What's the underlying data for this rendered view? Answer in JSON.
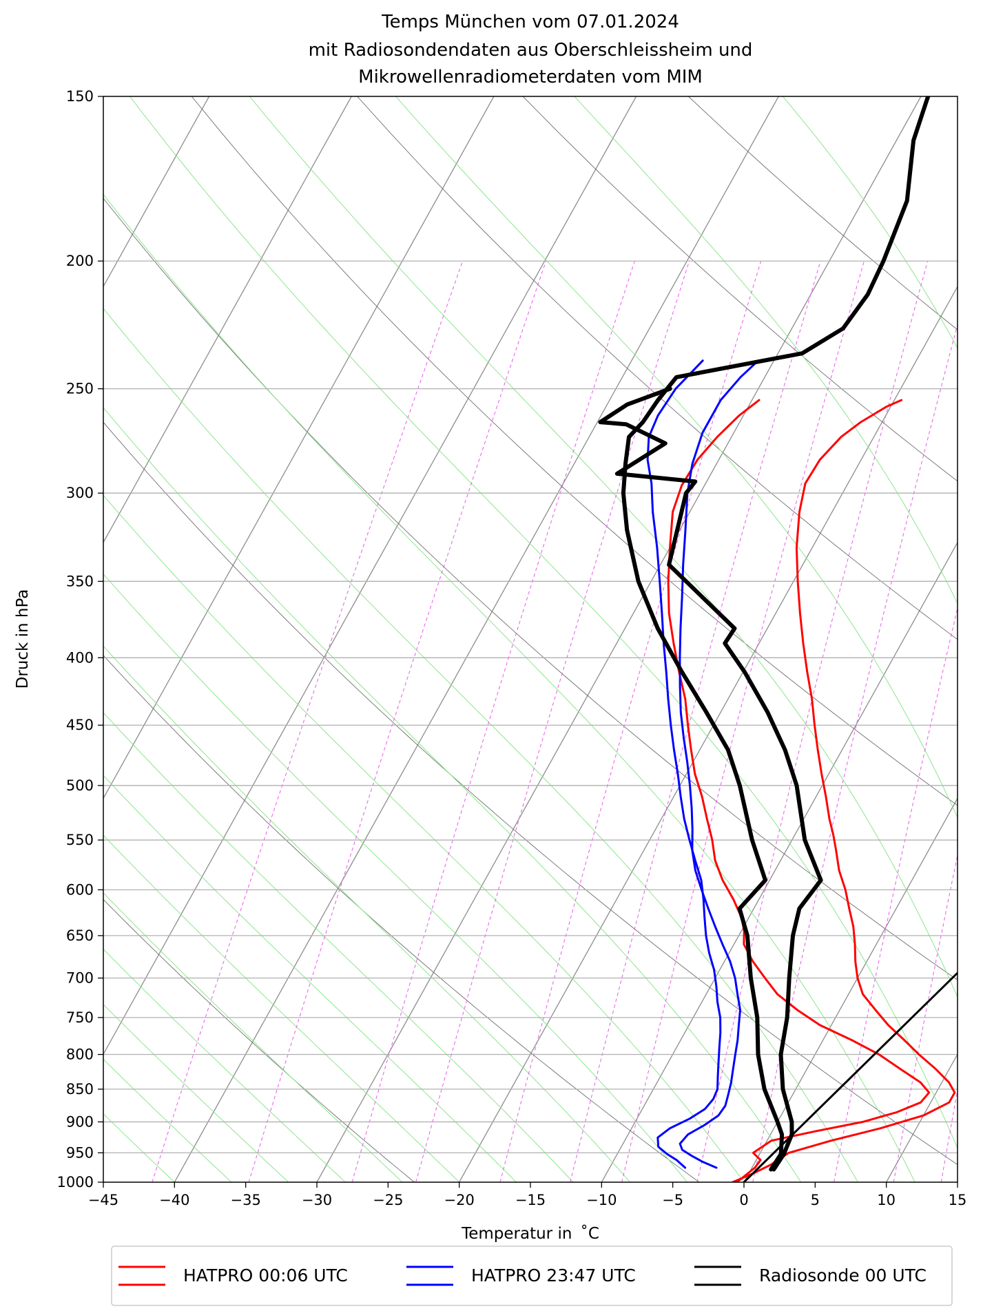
{
  "chart_data": {
    "type": "line",
    "title": [
      "Temps München vom 07.01.2024",
      "mit Radiosondendaten aus Oberschleissheim und",
      "Mikrowellenradiometerdaten vom MIM"
    ],
    "xlabel": "Temperatur in  ˚C",
    "ylabel": "Druck in hPa",
    "xlim": [
      -45,
      15
    ],
    "ylim": [
      1000,
      150
    ],
    "y_scale": "log",
    "skew_deg_per_decade": 51.5,
    "x_ticks": [
      "−45",
      "−40",
      "−35",
      "−30",
      "−25",
      "−20",
      "−15",
      "−10",
      "−5",
      "0",
      "5",
      "10",
      "15"
    ],
    "y_ticks": [
      "150",
      "200",
      "250",
      "300",
      "350",
      "400",
      "450",
      "500",
      "550",
      "600",
      "650",
      "700",
      "750",
      "800",
      "850",
      "900",
      "950",
      "1000"
    ],
    "grid": true,
    "legend_position": "bottom",
    "background_lines": {
      "skewed_isotherms": "gray",
      "dry_adiabats": "dimgray",
      "moist_adiabats": "lightgreen",
      "mixing_ratio_lines": "magenta dashed"
    },
    "series": [
      {
        "name": "HATPRO 00:06 UTC",
        "color": "#ff0000",
        "lines": [
          {
            "label": "temperature",
            "points": [
              [
                1000,
                -0.5
              ],
              [
                975,
                0.2
              ],
              [
                962,
                0.3
              ],
              [
                950,
                -0.5
              ],
              [
                930,
                0.3
              ],
              [
                915,
                3.0
              ],
              [
                900,
                6.0
              ],
              [
                885,
                8.0
              ],
              [
                870,
                9.3
              ],
              [
                855,
                9.5
              ],
              [
                840,
                8.5
              ],
              [
                820,
                6.5
              ],
              [
                800,
                4.5
              ],
              [
                780,
                2.0
              ],
              [
                760,
                -0.8
              ],
              [
                740,
                -3.0
              ],
              [
                720,
                -5.0
              ],
              [
                700,
                -6.5
              ],
              [
                680,
                -8.0
              ],
              [
                660,
                -9.3
              ],
              [
                645,
                -9.8
              ],
              [
                630,
                -10.5
              ],
              [
                610,
                -11.8
              ],
              [
                590,
                -13.3
              ],
              [
                570,
                -14.6
              ],
              [
                550,
                -15.6
              ],
              [
                530,
                -16.8
              ],
              [
                510,
                -18.0
              ],
              [
                490,
                -19.4
              ],
              [
                470,
                -20.6
              ],
              [
                450,
                -21.8
              ],
              [
                430,
                -23.0
              ],
              [
                410,
                -24.5
              ],
              [
                390,
                -26.0
              ],
              [
                370,
                -27.5
              ],
              [
                350,
                -28.8
              ],
              [
                330,
                -30.0
              ],
              [
                310,
                -31.2
              ],
              [
                296,
                -31.6
              ],
              [
                283,
                -31.5
              ],
              [
                272,
                -31.0
              ],
              [
                262,
                -30.3
              ],
              [
                255,
                -29.5
              ]
            ]
          },
          {
            "label": "dewpoint",
            "points": [
              [
                1000,
                -0.8
              ],
              [
                985,
                0.3
              ],
              [
                970,
                1.2
              ],
              [
                950,
                2.0
              ],
              [
                930,
                4.5
              ],
              [
                910,
                7.5
              ],
              [
                890,
                10.0
              ],
              [
                870,
                11.3
              ],
              [
                855,
                11.3
              ],
              [
                840,
                10.5
              ],
              [
                820,
                9.0
              ],
              [
                800,
                7.3
              ],
              [
                780,
                5.7
              ],
              [
                760,
                4.0
              ],
              [
                740,
                2.5
              ],
              [
                720,
                1.0
              ],
              [
                700,
                0.0
              ],
              [
                680,
                -0.8
              ],
              [
                660,
                -1.5
              ],
              [
                640,
                -2.3
              ],
              [
                620,
                -3.3
              ],
              [
                600,
                -4.3
              ],
              [
                580,
                -5.5
              ],
              [
                560,
                -6.5
              ],
              [
                545,
                -7.3
              ],
              [
                530,
                -8.2
              ],
              [
                510,
                -9.3
              ],
              [
                490,
                -10.5
              ],
              [
                470,
                -11.7
              ],
              [
                450,
                -12.9
              ],
              [
                430,
                -14.1
              ],
              [
                410,
                -15.5
              ],
              [
                390,
                -16.9
              ],
              [
                370,
                -18.3
              ],
              [
                350,
                -19.7
              ],
              [
                330,
                -21.1
              ],
              [
                310,
                -22.3
              ],
              [
                295,
                -23.0
              ],
              [
                283,
                -22.9
              ],
              [
                272,
                -22.3
              ],
              [
                265,
                -21.5
              ],
              [
                258,
                -20.3
              ],
              [
                255,
                -19.5
              ]
            ]
          }
        ]
      },
      {
        "name": "HATPRO 23:47 UTC",
        "color": "#0000ff",
        "lines": [
          {
            "label": "temperature",
            "points": [
              [
                975,
                -2.5
              ],
              [
                965,
                -3.7
              ],
              [
                955,
                -4.7
              ],
              [
                945,
                -5.6
              ],
              [
                935,
                -6.0
              ],
              [
                920,
                -5.8
              ],
              [
                905,
                -5.0
              ],
              [
                890,
                -4.4
              ],
              [
                875,
                -4.3
              ],
              [
                860,
                -4.5
              ],
              [
                840,
                -4.8
              ],
              [
                820,
                -5.2
              ],
              [
                800,
                -5.6
              ],
              [
                780,
                -6.0
              ],
              [
                760,
                -6.5
              ],
              [
                740,
                -7.0
              ],
              [
                720,
                -7.8
              ],
              [
                700,
                -8.6
              ],
              [
                680,
                -9.6
              ],
              [
                660,
                -10.8
              ],
              [
                640,
                -12.0
              ],
              [
                620,
                -13.2
              ],
              [
                600,
                -14.4
              ],
              [
                580,
                -15.6
              ],
              [
                560,
                -16.6
              ],
              [
                540,
                -17.4
              ],
              [
                520,
                -18.3
              ],
              [
                500,
                -19.3
              ],
              [
                480,
                -20.4
              ],
              [
                460,
                -21.6
              ],
              [
                440,
                -22.8
              ],
              [
                420,
                -23.9
              ],
              [
                400,
                -25.0
              ],
              [
                380,
                -26.1
              ],
              [
                360,
                -27.2
              ],
              [
                340,
                -28.4
              ],
              [
                320,
                -29.6
              ],
              [
                300,
                -30.9
              ],
              [
                285,
                -31.7
              ],
              [
                270,
                -32.2
              ],
              [
                255,
                -32.2
              ],
              [
                245,
                -31.7
              ],
              [
                238,
                -31.1
              ]
            ]
          },
          {
            "label": "dewpoint",
            "points": [
              [
                975,
                -4.7
              ],
              [
                962,
                -5.6
              ],
              [
                952,
                -6.5
              ],
              [
                940,
                -7.4
              ],
              [
                925,
                -7.8
              ],
              [
                910,
                -7.3
              ],
              [
                895,
                -6.3
              ],
              [
                880,
                -5.6
              ],
              [
                865,
                -5.4
              ],
              [
                850,
                -5.5
              ],
              [
                830,
                -6.0
              ],
              [
                810,
                -6.5
              ],
              [
                790,
                -7.0
              ],
              [
                770,
                -7.5
              ],
              [
                750,
                -8.1
              ],
              [
                730,
                -8.9
              ],
              [
                710,
                -9.6
              ],
              [
                690,
                -10.4
              ],
              [
                670,
                -11.4
              ],
              [
                650,
                -12.3
              ],
              [
                630,
                -13.1
              ],
              [
                610,
                -13.9
              ],
              [
                590,
                -14.8
              ],
              [
                570,
                -16.0
              ],
              [
                550,
                -17.2
              ],
              [
                530,
                -18.4
              ],
              [
                510,
                -19.5
              ],
              [
                490,
                -20.6
              ],
              [
                470,
                -21.8
              ],
              [
                450,
                -23.0
              ],
              [
                430,
                -24.2
              ],
              [
                410,
                -25.4
              ],
              [
                390,
                -26.7
              ],
              [
                370,
                -28.0
              ],
              [
                350,
                -29.4
              ],
              [
                330,
                -30.9
              ],
              [
                310,
                -32.6
              ],
              [
                295,
                -33.8
              ],
              [
                283,
                -35.0
              ],
              [
                272,
                -35.8
              ],
              [
                262,
                -36.0
              ],
              [
                250,
                -35.8
              ],
              [
                238,
                -35.0
              ]
            ]
          }
        ]
      },
      {
        "name": "Radiosonde 00 UTC",
        "color": "#000000",
        "lines": [
          {
            "label": "temperature",
            "points": [
              [
                978,
                1.6
              ],
              [
                952,
                1.7
              ],
              [
                920,
                1.5
              ],
              [
                900,
                1.0
              ],
              [
                850,
                -0.9
              ],
              [
                800,
                -2.4
              ],
              [
                750,
                -3.4
              ],
              [
                700,
                -4.8
              ],
              [
                650,
                -6.2
              ],
              [
                620,
                -6.8
              ],
              [
                590,
                -6.4
              ],
              [
                550,
                -9.1
              ],
              [
                500,
                -11.8
              ],
              [
                470,
                -14.0
              ],
              [
                440,
                -16.7
              ],
              [
                410,
                -19.9
              ],
              [
                390,
                -22.4
              ],
              [
                380,
                -22.3
              ],
              [
                340,
                -29.4
              ],
              [
                300,
                -31.0
              ],
              [
                294,
                -30.8
              ],
              [
                290,
                -36.6
              ],
              [
                275,
                -34.4
              ],
              [
                266,
                -37.9
              ],
              [
                265,
                -39.8
              ],
              [
                257,
                -38.6
              ],
              [
                250,
                -36.2
              ]
            ]
          },
          {
            "label": "dewpoint",
            "points": [
              [
                978,
                1.4
              ],
              [
                952,
                1.5
              ],
              [
                920,
                0.8
              ],
              [
                900,
                0.0
              ],
              [
                850,
                -2.2
              ],
              [
                800,
                -4.0
              ],
              [
                750,
                -5.5
              ],
              [
                700,
                -7.5
              ],
              [
                650,
                -9.4
              ],
              [
                620,
                -11.0
              ],
              [
                590,
                -10.3
              ],
              [
                550,
                -12.8
              ],
              [
                500,
                -15.8
              ],
              [
                470,
                -18.0
              ],
              [
                440,
                -21.0
              ],
              [
                410,
                -24.3
              ],
              [
                380,
                -27.7
              ],
              [
                350,
                -30.9
              ],
              [
                320,
                -33.7
              ],
              [
                300,
                -35.4
              ],
              [
                285,
                -36.4
              ],
              [
                272,
                -37.2
              ],
              [
                265,
                -36.8
              ],
              [
                255,
                -36.6
              ],
              [
                245,
                -36.2
              ],
              [
                235,
                -28.3
              ],
              [
                225,
                -26.4
              ],
              [
                212,
                -26.0
              ],
              [
                200,
                -26.2
              ],
              [
                180,
                -26.9
              ],
              [
                162,
                -28.8
              ],
              [
                150,
                -29.5
              ]
            ]
          }
        ]
      }
    ],
    "reference_line": {
      "color": "#000000",
      "points": [
        [
          1000,
          0.0
        ],
        [
          450,
          14.9
        ]
      ]
    }
  }
}
